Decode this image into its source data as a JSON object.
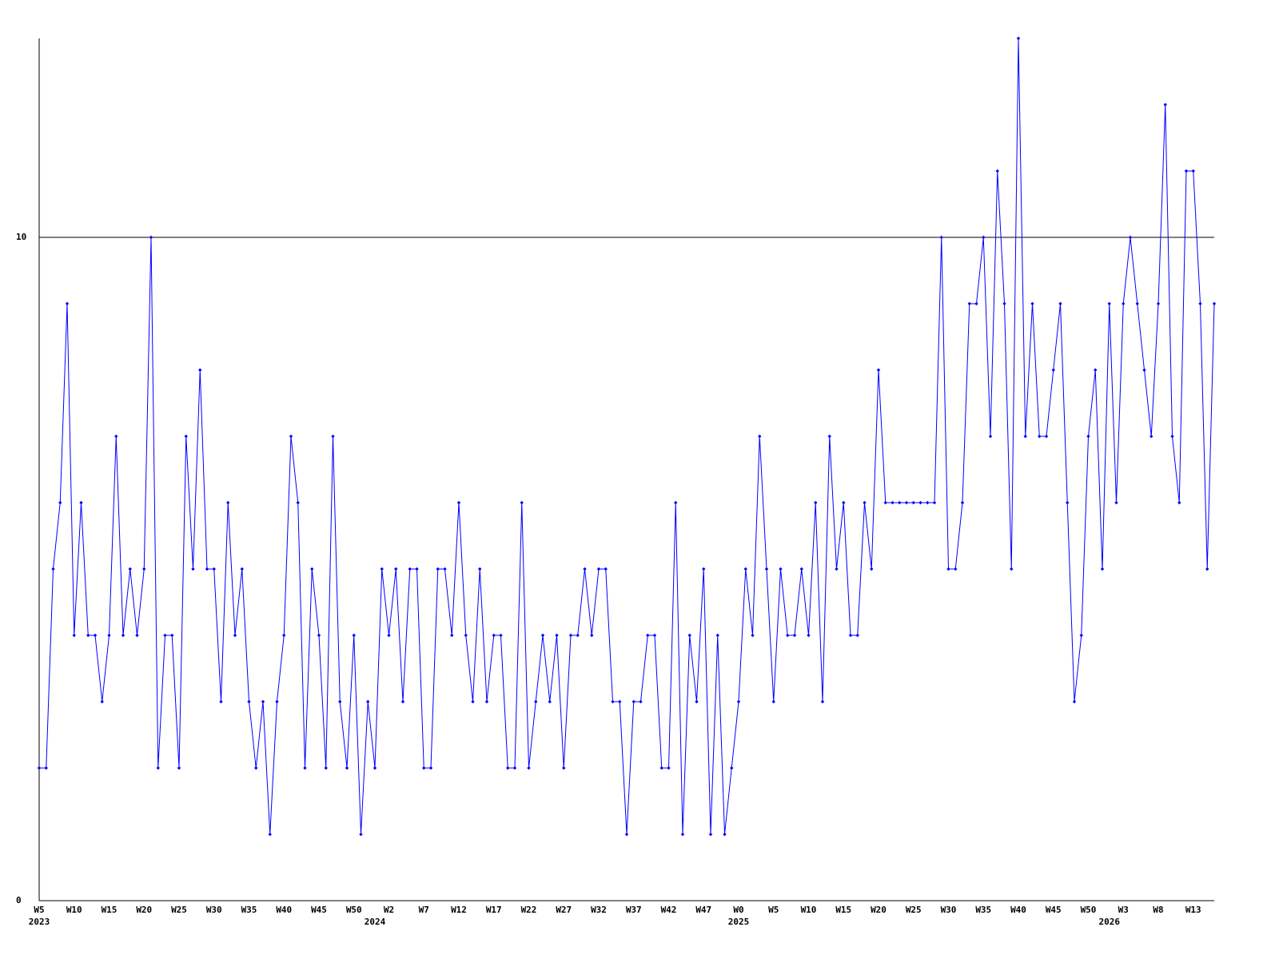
{
  "chart_data": {
    "type": "line",
    "categories": [
      "W5",
      null,
      null,
      null,
      null,
      "W10",
      null,
      null,
      null,
      null,
      "W15",
      null,
      null,
      null,
      null,
      "W20",
      null,
      null,
      null,
      null,
      "W25",
      null,
      null,
      null,
      null,
      "W30",
      null,
      null,
      null,
      null,
      "W35",
      null,
      null,
      null,
      null,
      "W40",
      null,
      null,
      null,
      null,
      "W45",
      null,
      null,
      null,
      null,
      "W50",
      null,
      null,
      null,
      null,
      "W2",
      null,
      null,
      null,
      null,
      "W7",
      null,
      null,
      null,
      null,
      "W12",
      null,
      null,
      null,
      null,
      "W17",
      null,
      null,
      null,
      null,
      "W22",
      null,
      null,
      null,
      null,
      "W27",
      null,
      null,
      null,
      null,
      "W32",
      null,
      null,
      null,
      null,
      "W37",
      null,
      null,
      null,
      null,
      "W42",
      null,
      null,
      null,
      null,
      "W47",
      null,
      null,
      null,
      null,
      "W0",
      null,
      null,
      null,
      null,
      "W5",
      null,
      null,
      null,
      null,
      "W10",
      null,
      null,
      null,
      null,
      "W15",
      null,
      null,
      null,
      null,
      "W20",
      null,
      null,
      null,
      null,
      "W25",
      null,
      null,
      null,
      null,
      "W30",
      null,
      null,
      null,
      null,
      "W35",
      null,
      null,
      null,
      null,
      "W40",
      null,
      null,
      null,
      null,
      "W45",
      null,
      null,
      null,
      null,
      "W50",
      null,
      null,
      null,
      null,
      "W3",
      null,
      null,
      null,
      null,
      "W8",
      null,
      null,
      null,
      null,
      "W13",
      null,
      null,
      null
    ],
    "years": [
      "2023",
      null,
      null,
      null,
      null,
      null,
      null,
      null,
      null,
      null,
      null,
      null,
      null,
      null,
      null,
      null,
      null,
      null,
      null,
      null,
      null,
      null,
      null,
      null,
      null,
      null,
      null,
      null,
      null,
      null,
      null,
      null,
      null,
      null,
      null,
      null,
      null,
      null,
      null,
      null,
      null,
      null,
      null,
      null,
      null,
      null,
      null,
      null,
      "2024",
      null,
      null,
      null,
      null,
      null,
      null,
      null,
      null,
      null,
      null,
      null,
      null,
      null,
      null,
      null,
      null,
      null,
      null,
      null,
      null,
      null,
      null,
      null,
      null,
      null,
      null,
      null,
      null,
      null,
      null,
      null,
      null,
      null,
      null,
      null,
      null,
      null,
      null,
      null,
      null,
      null,
      null,
      null,
      null,
      null,
      null,
      null,
      null,
      null,
      null,
      null,
      "2025",
      null,
      null,
      null,
      null,
      null,
      null,
      null,
      null,
      null,
      null,
      null,
      null,
      null,
      null,
      null,
      null,
      null,
      null,
      null,
      null,
      null,
      null,
      null,
      null,
      null,
      null,
      null,
      null,
      null,
      null,
      null,
      null,
      null,
      null,
      null,
      null,
      null,
      null,
      null,
      null,
      null,
      null,
      null,
      null,
      null,
      null,
      null,
      null,
      null,
      null,
      null,
      null,
      "2026",
      null,
      null,
      null,
      null,
      null,
      null,
      null,
      null,
      null,
      null,
      null,
      null,
      null,
      null,
      null
    ],
    "series": [
      {
        "color": "#0000ff",
        "values": [
          2,
          2,
          5,
          6,
          9,
          4,
          6,
          4,
          4,
          3,
          4,
          7,
          4,
          5,
          4,
          5,
          10,
          2,
          4,
          4,
          2,
          7,
          5,
          8,
          5,
          5,
          3,
          6,
          4,
          5,
          3,
          2,
          3,
          1,
          3,
          4,
          7,
          6,
          2,
          5,
          4,
          2,
          7,
          3,
          2,
          4,
          1,
          3,
          2,
          5,
          4,
          5,
          3,
          5,
          5,
          2,
          2,
          5,
          5,
          4,
          6,
          4,
          3,
          5,
          3,
          4,
          4,
          2,
          2,
          6,
          2,
          3,
          4,
          3,
          4,
          2,
          4,
          4,
          5,
          4,
          5,
          5,
          3,
          3,
          1,
          3,
          3,
          4,
          4,
          2,
          2,
          6,
          1,
          4,
          3,
          5,
          1,
          4,
          1,
          2,
          3,
          5,
          4,
          7,
          5,
          3,
          5,
          4,
          4,
          5,
          4,
          6,
          3,
          7,
          5,
          6,
          4,
          4,
          6,
          5,
          8,
          6,
          6,
          6,
          6,
          6,
          6,
          6,
          6,
          10,
          5,
          5,
          6,
          9,
          9,
          10,
          7,
          11,
          9,
          5,
          13,
          7,
          9,
          7,
          7,
          8,
          9,
          6,
          3,
          4,
          7,
          8,
          5,
          9,
          6,
          9,
          10,
          9,
          8,
          7,
          9,
          12,
          7,
          6,
          11,
          11,
          9,
          5,
          9
        ]
      }
    ],
    "ylim": [
      0,
      13
    ],
    "yticks": [
      0,
      10
    ],
    "grid": true
  }
}
